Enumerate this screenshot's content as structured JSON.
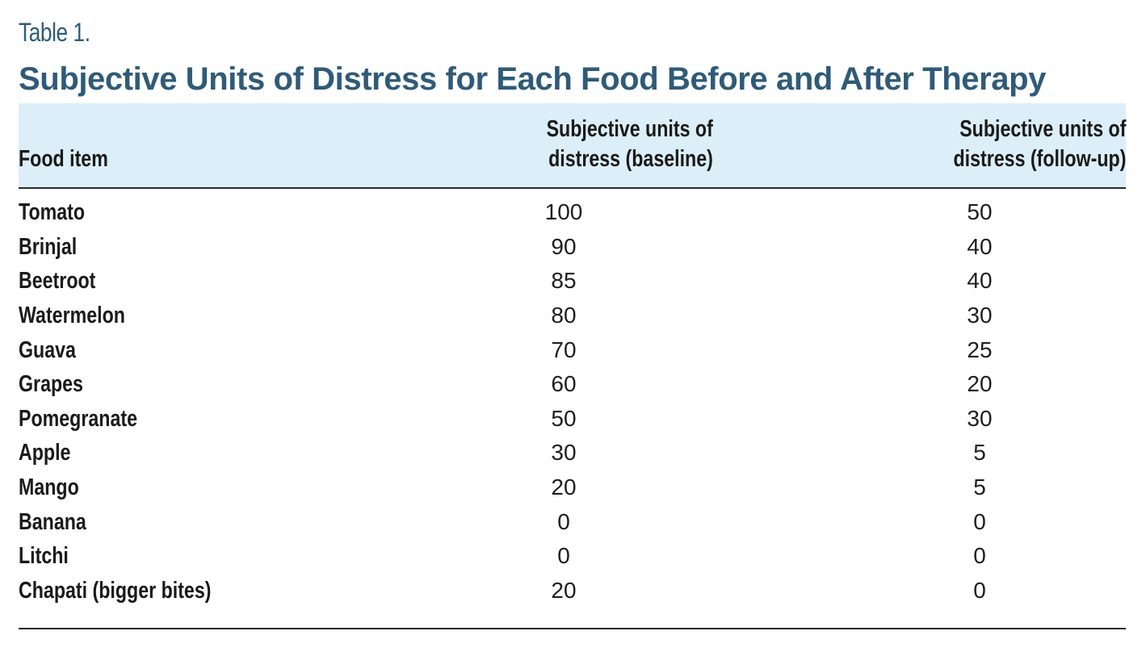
{
  "table_label": "Table 1.",
  "title": "Subjective Units of Distress for Each Food Before and After Therapy",
  "headers": {
    "food": "Food item",
    "baseline": [
      "Subjective units of",
      "distress (baseline)"
    ],
    "followup": [
      "Subjective units of",
      "distress (follow-up)"
    ]
  },
  "rows": [
    {
      "food": "Tomato",
      "baseline": "100",
      "followup": "50"
    },
    {
      "food": "Brinjal",
      "baseline": "90",
      "followup": "40"
    },
    {
      "food": "Beetroot",
      "baseline": "85",
      "followup": "40"
    },
    {
      "food": "Watermelon",
      "baseline": "80",
      "followup": "30"
    },
    {
      "food": "Guava",
      "baseline": "70",
      "followup": "25"
    },
    {
      "food": "Grapes",
      "baseline": "60",
      "followup": "20"
    },
    {
      "food": "Pomegranate",
      "baseline": "50",
      "followup": "30"
    },
    {
      "food": "Apple",
      "baseline": "30",
      "followup": "5"
    },
    {
      "food": "Mango",
      "baseline": "20",
      "followup": "5"
    },
    {
      "food": "Banana",
      "baseline": "0",
      "followup": "0"
    },
    {
      "food": "Litchi",
      "baseline": "0",
      "followup": "0"
    },
    {
      "food": "Chapati (bigger bites)",
      "baseline": "20",
      "followup": "0"
    }
  ],
  "colors": {
    "title": "#2f5b78",
    "header_bg": "#dceef8",
    "rule": "#2a2a2a"
  }
}
